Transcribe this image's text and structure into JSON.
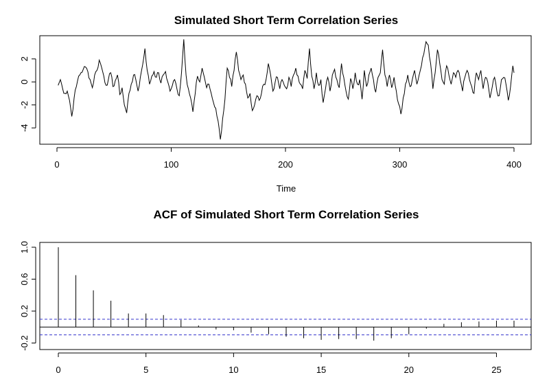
{
  "chart_data": [
    {
      "type": "line",
      "title": "Simulated Short Term Correlation Series",
      "xlabel": "Time",
      "ylabel": "",
      "xlim": [
        0,
        400
      ],
      "ylim": [
        -5,
        3.6
      ],
      "xticks": [
        0,
        100,
        200,
        300,
        400
      ],
      "yticks": [
        -4,
        -2,
        0,
        2
      ],
      "x_start": 1,
      "x_step": 1,
      "keypoints": [
        [
          1,
          -0.3
        ],
        [
          3,
          0.2
        ],
        [
          5,
          -0.6
        ],
        [
          7,
          -1.0
        ],
        [
          9,
          -0.8
        ],
        [
          11,
          -1.6
        ],
        [
          13,
          -3.0
        ],
        [
          15,
          -1.4
        ],
        [
          17,
          -0.4
        ],
        [
          19,
          0.5
        ],
        [
          21,
          0.8
        ],
        [
          23,
          1.1
        ],
        [
          25,
          1.3
        ],
        [
          27,
          0.9
        ],
        [
          29,
          0.2
        ],
        [
          31,
          -0.5
        ],
        [
          33,
          0.6
        ],
        [
          35,
          1.0
        ],
        [
          37,
          1.9
        ],
        [
          39,
          1.3
        ],
        [
          41,
          0.5
        ],
        [
          43,
          -0.3
        ],
        [
          45,
          0.2
        ],
        [
          47,
          0.8
        ],
        [
          49,
          -0.4
        ],
        [
          51,
          0.1
        ],
        [
          53,
          0.6
        ],
        [
          55,
          -1.1
        ],
        [
          57,
          -0.5
        ],
        [
          59,
          -2.0
        ],
        [
          61,
          -2.7
        ],
        [
          63,
          -1.0
        ],
        [
          65,
          -0.2
        ],
        [
          67,
          0.6
        ],
        [
          69,
          0.2
        ],
        [
          71,
          -0.8
        ],
        [
          73,
          0.4
        ],
        [
          75,
          1.5
        ],
        [
          77,
          2.9
        ],
        [
          79,
          1.0
        ],
        [
          81,
          -0.2
        ],
        [
          83,
          0.5
        ],
        [
          85,
          0.9
        ],
        [
          87,
          0.4
        ],
        [
          89,
          0.8
        ],
        [
          91,
          -0.1
        ],
        [
          93,
          0.6
        ],
        [
          95,
          0.9
        ],
        [
          97,
          0.0
        ],
        [
          99,
          -0.8
        ],
        [
          101,
          -0.3
        ],
        [
          103,
          0.2
        ],
        [
          105,
          -0.6
        ],
        [
          107,
          -1.2
        ],
        [
          109,
          0.8
        ],
        [
          111,
          3.7
        ],
        [
          113,
          0.6
        ],
        [
          115,
          -0.6
        ],
        [
          117,
          -1.4
        ],
        [
          119,
          -2.6
        ],
        [
          121,
          -1.0
        ],
        [
          123,
          0.5
        ],
        [
          125,
          0.0
        ],
        [
          127,
          1.2
        ],
        [
          129,
          0.4
        ],
        [
          131,
          -0.5
        ],
        [
          133,
          -0.2
        ],
        [
          135,
          -1.0
        ],
        [
          137,
          -1.8
        ],
        [
          139,
          -2.3
        ],
        [
          141,
          -3.4
        ],
        [
          143,
          -5.0
        ],
        [
          145,
          -3.2
        ],
        [
          147,
          -1.5
        ],
        [
          149,
          1.2
        ],
        [
          151,
          0.4
        ],
        [
          153,
          -0.4
        ],
        [
          155,
          1.0
        ],
        [
          157,
          2.6
        ],
        [
          159,
          1.0
        ],
        [
          161,
          0.2
        ],
        [
          163,
          0.6
        ],
        [
          165,
          -0.2
        ],
        [
          167,
          -1.4
        ],
        [
          169,
          -1.0
        ],
        [
          171,
          -2.5
        ],
        [
          173,
          -2.0
        ],
        [
          175,
          -1.2
        ],
        [
          177,
          -1.6
        ],
        [
          179,
          -1.0
        ],
        [
          181,
          -0.2
        ],
        [
          183,
          0.2
        ],
        [
          185,
          1.6
        ],
        [
          187,
          0.6
        ],
        [
          189,
          -0.8
        ],
        [
          191,
          0.0
        ],
        [
          193,
          0.4
        ],
        [
          195,
          -0.6
        ],
        [
          197,
          0.2
        ],
        [
          199,
          -0.3
        ],
        [
          201,
          -0.6
        ],
        [
          203,
          0.4
        ],
        [
          205,
          -0.4
        ],
        [
          207,
          0.6
        ],
        [
          209,
          1.2
        ],
        [
          211,
          0.5
        ],
        [
          213,
          -0.2
        ],
        [
          215,
          -0.6
        ],
        [
          217,
          1.0
        ],
        [
          219,
          0.3
        ],
        [
          221,
          2.9
        ],
        [
          223,
          0.5
        ],
        [
          225,
          -0.6
        ],
        [
          227,
          0.8
        ],
        [
          229,
          -0.3
        ],
        [
          231,
          0.2
        ],
        [
          233,
          -1.8
        ],
        [
          235,
          -0.6
        ],
        [
          237,
          0.4
        ],
        [
          239,
          -0.8
        ],
        [
          241,
          0.6
        ],
        [
          243,
          1.1
        ],
        [
          245,
          0.2
        ],
        [
          247,
          -0.5
        ],
        [
          249,
          1.6
        ],
        [
          251,
          0.4
        ],
        [
          253,
          -0.8
        ],
        [
          255,
          -1.5
        ],
        [
          257,
          0.3
        ],
        [
          259,
          -0.6
        ],
        [
          261,
          0.8
        ],
        [
          263,
          -0.2
        ],
        [
          265,
          0.2
        ],
        [
          267,
          -1.5
        ],
        [
          269,
          1.0
        ],
        [
          271,
          -0.4
        ],
        [
          273,
          0.6
        ],
        [
          275,
          1.2
        ],
        [
          277,
          0.2
        ],
        [
          279,
          -0.9
        ],
        [
          281,
          0.4
        ],
        [
          283,
          0.8
        ],
        [
          285,
          2.8
        ],
        [
          287,
          0.6
        ],
        [
          289,
          -0.4
        ],
        [
          291,
          0.6
        ],
        [
          293,
          -0.5
        ],
        [
          295,
          0.4
        ],
        [
          297,
          -0.8
        ],
        [
          299,
          -1.9
        ],
        [
          301,
          -2.8
        ],
        [
          303,
          -1.4
        ],
        [
          305,
          -0.2
        ],
        [
          307,
          0.6
        ],
        [
          309,
          -0.4
        ],
        [
          311,
          0.2
        ],
        [
          313,
          1.0
        ],
        [
          315,
          -0.2
        ],
        [
          317,
          0.6
        ],
        [
          319,
          1.4
        ],
        [
          321,
          2.4
        ],
        [
          323,
          3.5
        ],
        [
          325,
          3.2
        ],
        [
          327,
          1.6
        ],
        [
          329,
          -0.6
        ],
        [
          331,
          0.8
        ],
        [
          333,
          2.8
        ],
        [
          335,
          1.6
        ],
        [
          337,
          0.2
        ],
        [
          339,
          -0.2
        ],
        [
          341,
          1.4
        ],
        [
          343,
          0.6
        ],
        [
          345,
          -0.2
        ],
        [
          347,
          0.8
        ],
        [
          349,
          0.4
        ],
        [
          351,
          1.0
        ],
        [
          353,
          0.2
        ],
        [
          355,
          -0.8
        ],
        [
          357,
          0.4
        ],
        [
          359,
          1.0
        ],
        [
          361,
          0.2
        ],
        [
          363,
          -0.4
        ],
        [
          365,
          -1.0
        ],
        [
          367,
          0.8
        ],
        [
          369,
          0.2
        ],
        [
          371,
          1.0
        ],
        [
          373,
          -0.6
        ],
        [
          375,
          0.4
        ],
        [
          377,
          0.0
        ],
        [
          379,
          -1.4
        ],
        [
          381,
          -0.4
        ],
        [
          383,
          0.4
        ],
        [
          385,
          -0.8
        ],
        [
          387,
          -1.2
        ],
        [
          389,
          0.2
        ],
        [
          391,
          0.4
        ],
        [
          393,
          -0.2
        ],
        [
          395,
          -1.6
        ],
        [
          397,
          -0.4
        ],
        [
          399,
          1.4
        ],
        [
          400,
          0.8
        ]
      ],
      "series": [
        {
          "color": "#000000"
        }
      ]
    },
    {
      "type": "bar",
      "title": "ACF of Simulated Short Term Correlation Series",
      "xlabel": "",
      "ylabel": "",
      "xlim": [
        0,
        26
      ],
      "ylim": [
        -0.23,
        1.0
      ],
      "xticks": [
        0,
        5,
        10,
        15,
        20,
        25
      ],
      "yticks": [
        -0.2,
        0.2,
        0.6,
        1.0
      ],
      "yticklabels": [
        "-0.2",
        "0.2",
        "0.6",
        "1.0"
      ],
      "lags": [
        0,
        1,
        2,
        3,
        4,
        5,
        6,
        7,
        8,
        9,
        10,
        11,
        12,
        13,
        14,
        15,
        16,
        17,
        18,
        19,
        20,
        21,
        22,
        23,
        24,
        25,
        26
      ],
      "values": [
        1.0,
        0.65,
        0.46,
        0.33,
        0.17,
        0.17,
        0.15,
        0.09,
        0.02,
        -0.03,
        -0.04,
        -0.07,
        -0.09,
        -0.12,
        -0.14,
        -0.16,
        -0.15,
        -0.15,
        -0.17,
        -0.14,
        -0.09,
        -0.02,
        0.04,
        0.06,
        0.07,
        0.08,
        0.08
      ],
      "confidence_bound": 0.098,
      "colors": {
        "bars": "#000000",
        "ci_lines": "#3333cc"
      }
    }
  ]
}
